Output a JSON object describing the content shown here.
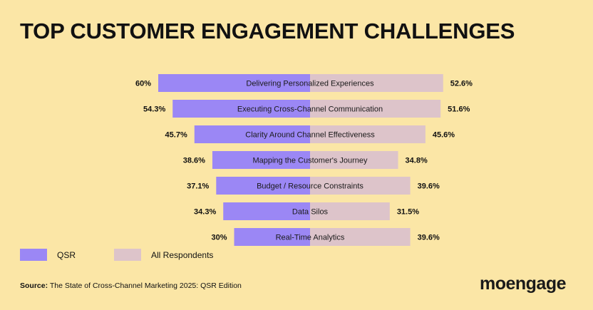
{
  "title": "TOP CUSTOMER ENGAGEMENT CHALLENGES",
  "chart_data": {
    "type": "bar",
    "layout": "butterfly",
    "categories": [
      "Delivering Personalized Experiences",
      "Executing Cross-Channel Communication",
      "Clarity Around Channel Effectiveness",
      "Mapping the Customer's Journey",
      "Budget / Resource Constraints",
      "Data Silos",
      "Real-Time Analytics"
    ],
    "series": [
      {
        "name": "QSR",
        "color": "#9B87F5",
        "values": [
          60,
          54.3,
          45.7,
          38.6,
          37.1,
          34.3,
          30
        ],
        "labels": [
          "60%",
          "54.3%",
          "45.7%",
          "38.6%",
          "37.1%",
          "34.3%",
          "30%"
        ]
      },
      {
        "name": "All Respondents",
        "color": "#DDC4CA",
        "values": [
          52.6,
          51.6,
          45.6,
          34.8,
          39.6,
          31.5,
          39.6
        ],
        "labels": [
          "52.6%",
          "51.6%",
          "45.6%",
          "34.8%",
          "39.6%",
          "31.5%",
          "39.6%"
        ]
      }
    ],
    "legend_position": "bottom-left",
    "grid": false
  },
  "legend": {
    "qsr_label": "QSR",
    "all_label": "All Respondents"
  },
  "source": {
    "prefix": "Source:",
    "text": " The State of Cross-Channel Marketing 2025: QSR Edition"
  },
  "logo": "moengage"
}
